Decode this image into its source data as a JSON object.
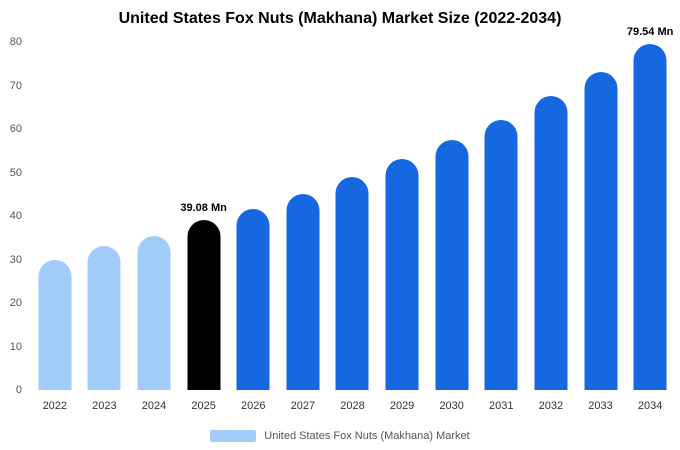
{
  "title": "United States Fox Nuts (Makhana) Market Size (2022-2034)",
  "legend": {
    "label": "United States Fox Nuts (Makhana) Market",
    "swatch_color": "#a1cbf8"
  },
  "colors": {
    "light": "#a1cbf8",
    "dark": "#1668e0",
    "highlight": "#000000"
  },
  "chart_data": {
    "type": "bar",
    "title": "United States Fox Nuts (Makhana) Market Size (2022-2034)",
    "categories": [
      "2022",
      "2023",
      "2024",
      "2025",
      "2026",
      "2027",
      "2028",
      "2029",
      "2030",
      "2031",
      "2032",
      "2033",
      "2034"
    ],
    "values": [
      30,
      33,
      35.5,
      39.08,
      41.5,
      45,
      49,
      53,
      57.5,
      62,
      67.5,
      73,
      79.54
    ],
    "bar_colors": [
      "light",
      "light",
      "light",
      "highlight",
      "dark",
      "dark",
      "dark",
      "dark",
      "dark",
      "dark",
      "dark",
      "dark",
      "dark"
    ],
    "annotations": [
      {
        "index": 3,
        "text": "39.08 Mn"
      },
      {
        "index": 12,
        "text": "79.54 Mn"
      }
    ],
    "xlabel": "",
    "ylabel": "",
    "ylim": [
      0,
      80
    ],
    "yticks": [
      0,
      10,
      20,
      30,
      40,
      50,
      60,
      70,
      80
    ],
    "grid": false,
    "legend_position": "bottom",
    "legend_entries": [
      "United States Fox Nuts (Makhana) Market"
    ]
  }
}
